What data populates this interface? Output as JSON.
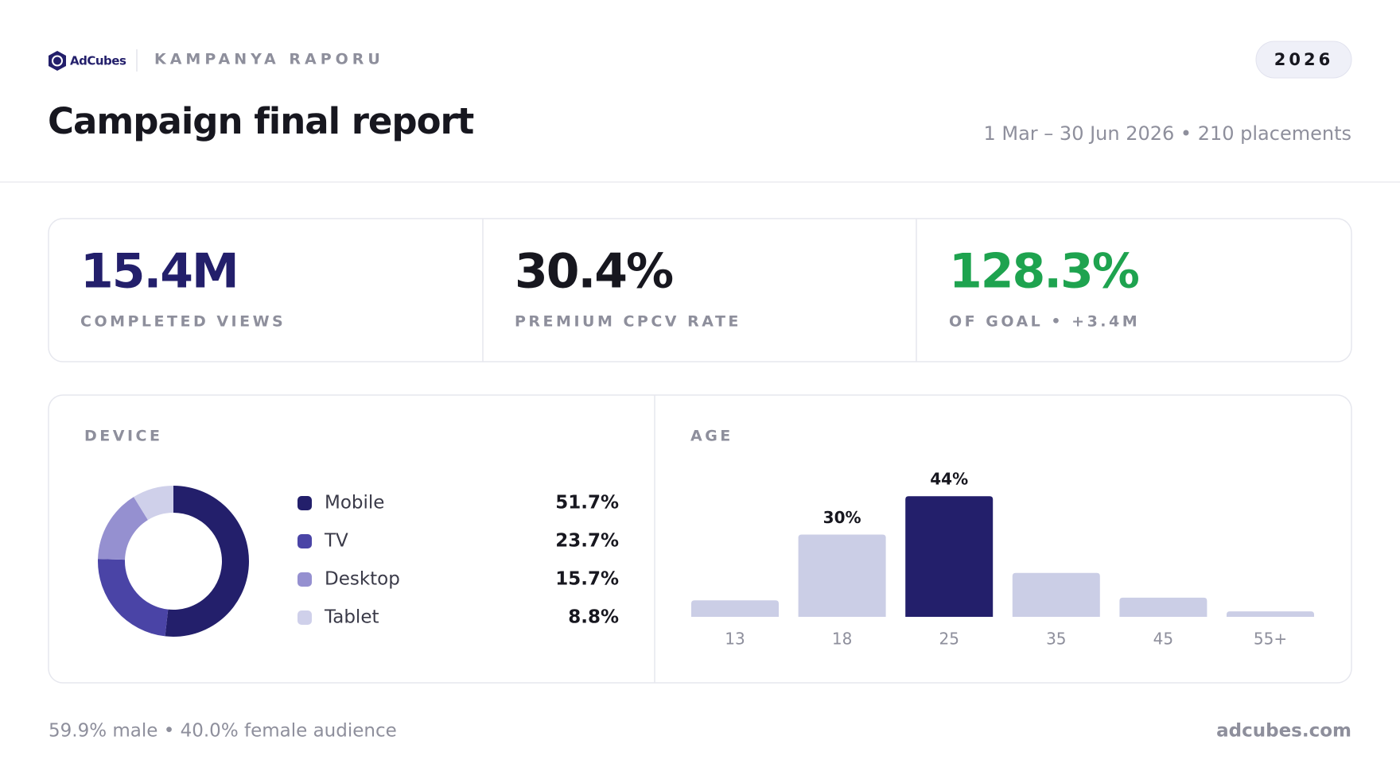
{
  "header": {
    "brand": "AdCubes",
    "section": "KAMPANYA RAPORU",
    "year": "2026",
    "title": "Campaign final report",
    "meta": "1 Mar – 30 Jun 2026 • 210 placements"
  },
  "kpis": [
    {
      "value": "15.4M",
      "label": "COMPLETED VIEWS",
      "color": "#231f6b"
    },
    {
      "value": "30.4%",
      "label": "PREMIUM CPCV RATE",
      "color": "#17171f"
    },
    {
      "value": "128.3%",
      "label": "OF GOAL • +3.4M",
      "color": "#1ea34f"
    }
  ],
  "chart_data": [
    {
      "type": "pie",
      "donut": true,
      "title": "DEVICE",
      "categories": [
        "Mobile",
        "TV",
        "Desktop",
        "Tablet"
      ],
      "values": [
        51.7,
        23.7,
        15.7,
        8.8
      ],
      "value_labels": [
        "51.7%",
        "23.7%",
        "15.7%",
        "8.8%"
      ],
      "colors": [
        "#231f6b",
        "#4a44a6",
        "#9590d0",
        "#cfd0ea"
      ]
    },
    {
      "type": "bar",
      "title": "AGE",
      "categories": [
        "13",
        "18",
        "25",
        "35",
        "45",
        "55+"
      ],
      "values": [
        6,
        30,
        44,
        16,
        7,
        2
      ],
      "value_labels": [
        null,
        "30%",
        "44%",
        null,
        null,
        null
      ],
      "colors": [
        "#cbcee6",
        "#cbcee6",
        "#231f6b",
        "#cbcee6",
        "#cbcee6",
        "#cbcee6"
      ]
    }
  ],
  "footer": {
    "left": "59.9% male • 40.0% female audience",
    "right": "adcubes.com"
  }
}
